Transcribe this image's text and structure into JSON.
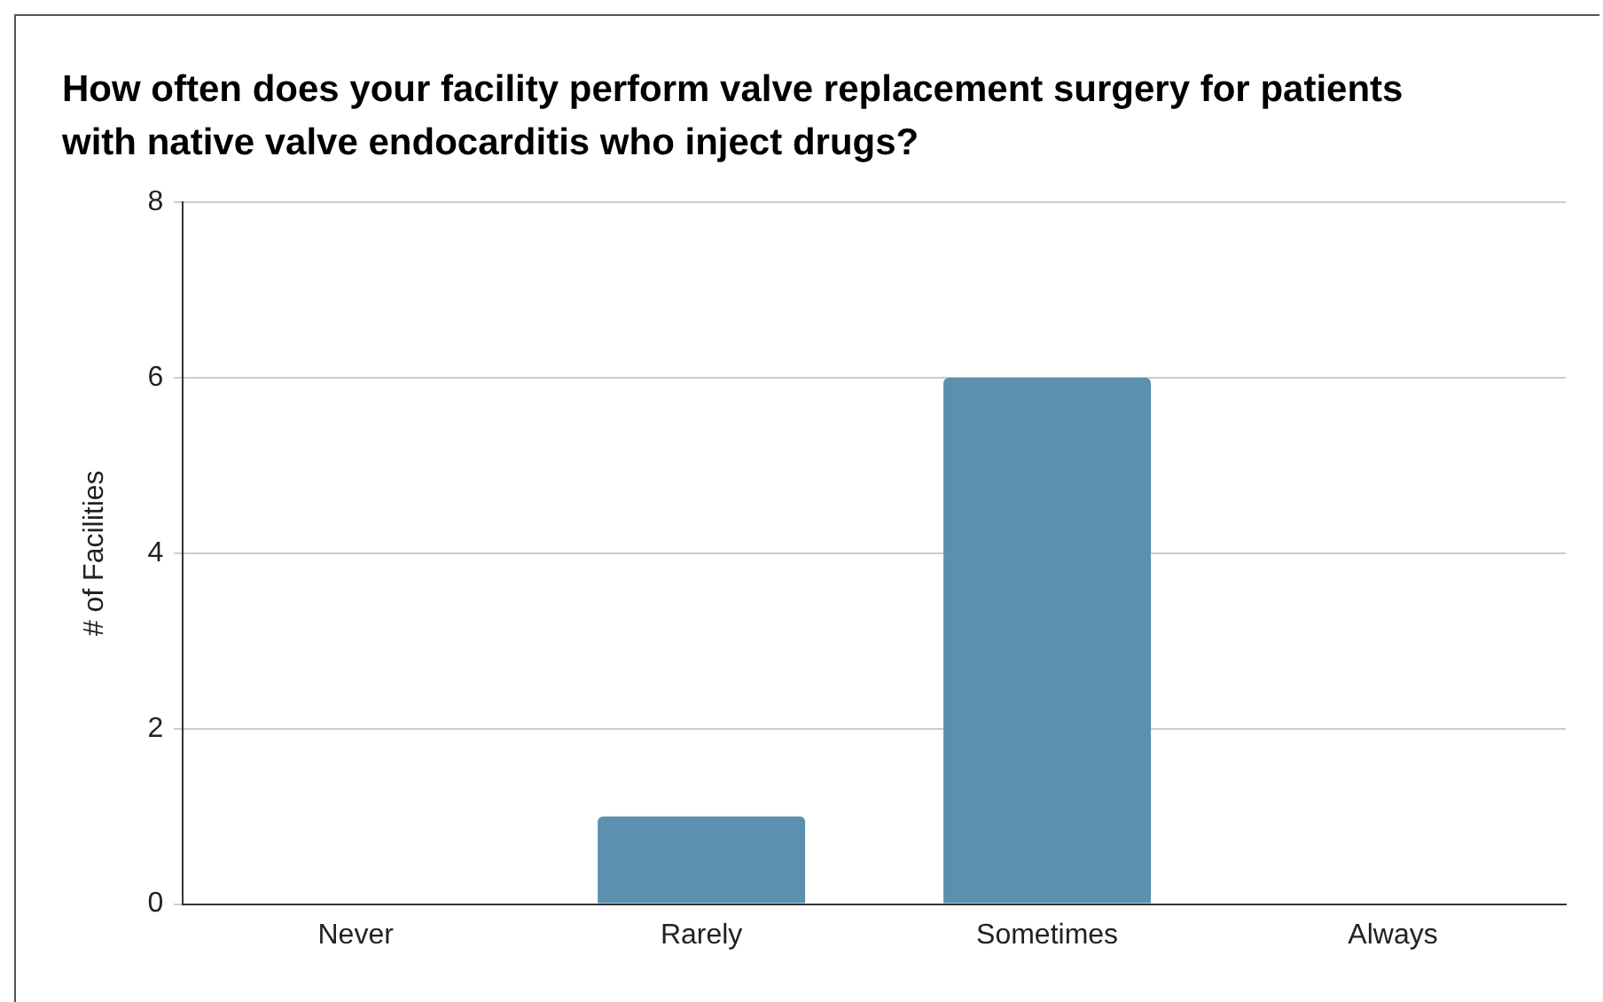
{
  "chart_data": {
    "type": "bar",
    "title": "How often does your facility perform valve replacement surgery for patients with native valve endocarditis who inject drugs?",
    "ylabel": "# of Facilities",
    "categories": [
      "Never",
      "Rarely",
      "Sometimes",
      "Always"
    ],
    "values": [
      0,
      1,
      6,
      0
    ],
    "color": "#5b90ae",
    "ylim": [
      0,
      8
    ],
    "yticks": [
      0,
      2,
      4,
      6,
      8
    ],
    "grid": "y",
    "legend": false
  }
}
